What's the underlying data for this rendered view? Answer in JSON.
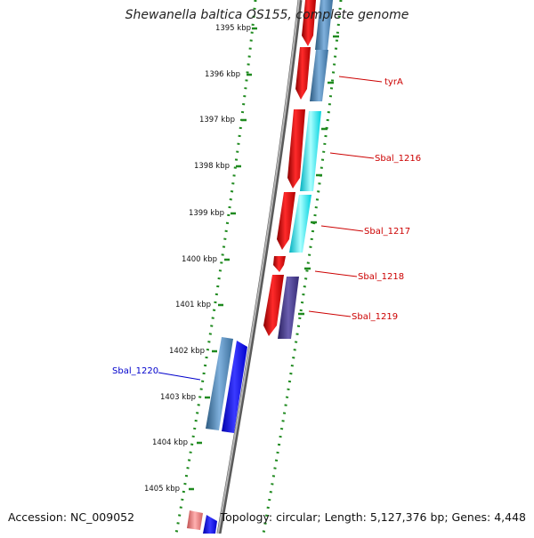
{
  "title": "Shewanella baltica OS155, complete genome",
  "footer": {
    "accession": "Accession: NC_009052",
    "topology": "Topology: circular; Length: 5,127,376 bp; Genes: 4,448"
  },
  "ruler": {
    "ticks": [
      "1395 kbp",
      "1396 kbp",
      "1397 kbp",
      "1398 kbp",
      "1399 kbp",
      "1400 kbp",
      "1401 kbp",
      "1402 kbp",
      "1403 kbp",
      "1404 kbp",
      "1405 kbp"
    ]
  },
  "gene_labels": [
    {
      "label": "tyrA",
      "color": "#cc0000"
    },
    {
      "label": "Sbal_1216",
      "color": "#cc0000"
    },
    {
      "label": "Sbal_1217",
      "color": "#cc0000"
    },
    {
      "label": "Sbal_1218",
      "color": "#cc0000"
    },
    {
      "label": "Sbal_1219",
      "color": "#cc0000"
    },
    {
      "label": "Sbal_1220",
      "color": "#0000cc"
    }
  ],
  "colors": {
    "backbone": "#888888",
    "dots": "#1f8a1f",
    "cds": "#ee0000",
    "gene_steel": "#4682b4",
    "gene_cyan": "#00e5ee",
    "gene_purple": "#483d8b",
    "gene_blue": "#0000ff",
    "gene_pink": "#f08080"
  }
}
